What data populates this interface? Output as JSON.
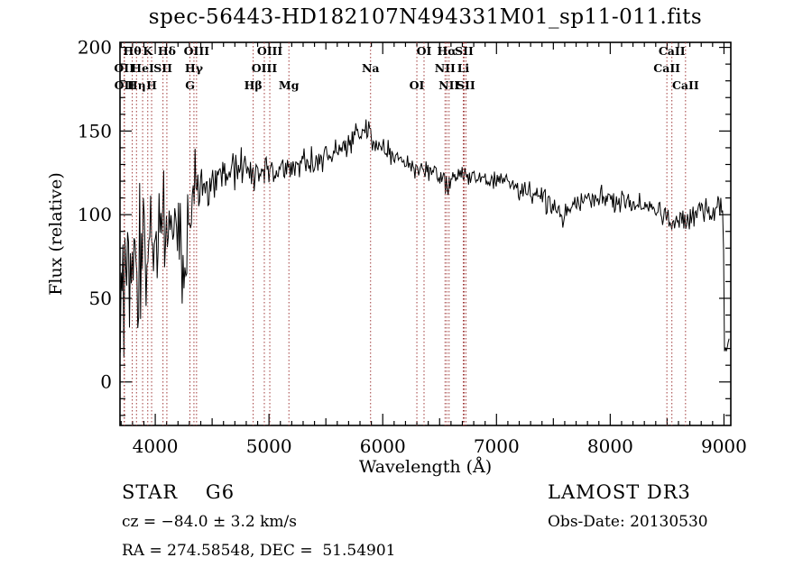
{
  "title": "spec-56443-HD182107N494331M01_sp11-011.fits",
  "annotations": {
    "class_label": "STAR    G6",
    "cz": "cz = −84.0 ± 3.2 km/s",
    "radec": "RA = 274.58548, DEC =  51.54901",
    "survey": "LAMOST DR3",
    "obs_date": "Obs-Date: 20130530"
  },
  "chart_data": {
    "type": "line",
    "title": "spec-56443-HD182107N494331M01_sp11-011.fits",
    "xlabel": "Wavelength (Å)",
    "ylabel": "Flux (relative)",
    "xlim": [
      3690,
      9060
    ],
    "ylim": [
      -26,
      203
    ],
    "x_ticks": [
      4000,
      5000,
      6000,
      7000,
      8000,
      9000
    ],
    "x_minor_step": 100,
    "y_ticks": [
      0,
      50,
      100,
      150,
      200
    ],
    "y_minor_step": 10,
    "grid": false,
    "legend": "none",
    "line_color": "#000000",
    "marker_line_color": "#a03a3a",
    "spectral_lines": [
      {
        "label": "OII",
        "wavelength": 3727,
        "row": 2
      },
      {
        "label": "OII",
        "wavelength": 3729,
        "row": 3
      },
      {
        "label": "Hθ",
        "wavelength": 3798,
        "row": 1
      },
      {
        "label": "Hη",
        "wavelength": 3835,
        "row": 3
      },
      {
        "label": "HeI",
        "wavelength": 3889,
        "row": 2
      },
      {
        "label": "K",
        "wavelength": 3934,
        "row": 1
      },
      {
        "label": "H",
        "wavelength": 3968,
        "row": 3
      },
      {
        "label": "SII",
        "wavelength": 4068,
        "row": 2
      },
      {
        "label": "Hδ",
        "wavelength": 4102,
        "row": 1
      },
      {
        "label": "G",
        "wavelength": 4305,
        "row": 3
      },
      {
        "label": "Hγ",
        "wavelength": 4340,
        "row": 2
      },
      {
        "label": "OIII",
        "wavelength": 4363,
        "row": 1
      },
      {
        "label": "Hβ",
        "wavelength": 4861,
        "row": 3
      },
      {
        "label": "OIII",
        "wavelength": 4959,
        "row": 2
      },
      {
        "label": "OIII",
        "wavelength": 5007,
        "row": 1
      },
      {
        "label": "Mg",
        "wavelength": 5175,
        "row": 3
      },
      {
        "label": "Na",
        "wavelength": 5893,
        "row": 2
      },
      {
        "label": "OI",
        "wavelength": 6300,
        "row": 3
      },
      {
        "label": "OI",
        "wavelength": 6363,
        "row": 1
      },
      {
        "label": "NII",
        "wavelength": 6548,
        "row": 2
      },
      {
        "label": "Hα",
        "wavelength": 6563,
        "row": 1
      },
      {
        "label": "NII",
        "wavelength": 6583,
        "row": 3
      },
      {
        "label": "Li",
        "wavelength": 6708,
        "row": 2
      },
      {
        "label": "SII",
        "wavelength": 6716,
        "row": 1
      },
      {
        "label": "SII",
        "wavelength": 6731,
        "row": 3
      },
      {
        "label": "CaII",
        "wavelength": 8498,
        "row": 2
      },
      {
        "label": "CaII",
        "wavelength": 8542,
        "row": 1
      },
      {
        "label": "CaII",
        "wavelength": 8662,
        "row": 3
      }
    ],
    "spectrum": {
      "seed": 20130530,
      "samples": 660,
      "wl_start": 3692,
      "wl_end": 9045,
      "envelope": [
        [
          3692,
          55,
          55
        ],
        [
          3715,
          70,
          60
        ],
        [
          3745,
          65,
          58
        ],
        [
          3775,
          70,
          55
        ],
        [
          3805,
          72,
          52
        ],
        [
          3835,
          74,
          50
        ],
        [
          3865,
          78,
          48
        ],
        [
          3900,
          82,
          46
        ],
        [
          3935,
          83,
          45
        ],
        [
          3970,
          86,
          44
        ],
        [
          4005,
          90,
          44
        ],
        [
          4040,
          96,
          42
        ],
        [
          4075,
          97,
          38
        ],
        [
          4110,
          95,
          34
        ],
        [
          4150,
          94,
          33
        ],
        [
          4190,
          90,
          34
        ],
        [
          4230,
          82,
          38
        ],
        [
          4270,
          83,
          36
        ],
        [
          4310,
          92,
          30
        ],
        [
          4350,
          105,
          26
        ],
        [
          4400,
          113,
          22
        ],
        [
          4460,
          118,
          19
        ],
        [
          4520,
          121,
          17
        ],
        [
          4590,
          124,
          16
        ],
        [
          4660,
          126,
          15
        ],
        [
          4730,
          127,
          14
        ],
        [
          4800,
          128,
          14
        ],
        [
          4861,
          123,
          12
        ],
        [
          4920,
          127,
          12
        ],
        [
          5000,
          128,
          12
        ],
        [
          5080,
          130,
          11
        ],
        [
          5175,
          126,
          10
        ],
        [
          5250,
          131,
          10
        ],
        [
          5350,
          132,
          10
        ],
        [
          5450,
          134,
          9
        ],
        [
          5550,
          136,
          9
        ],
        [
          5650,
          140,
          9
        ],
        [
          5750,
          145,
          9
        ],
        [
          5840,
          150,
          10
        ],
        [
          5880,
          149,
          12
        ],
        [
          5910,
          139,
          8
        ],
        [
          5960,
          142,
          8
        ],
        [
          6050,
          138,
          8
        ],
        [
          6150,
          133,
          8
        ],
        [
          6250,
          130,
          8
        ],
        [
          6350,
          127,
          8
        ],
        [
          6450,
          125,
          8
        ],
        [
          6540,
          122,
          7
        ],
        [
          6565,
          114,
          6
        ],
        [
          6600,
          122,
          7
        ],
        [
          6700,
          123,
          7
        ],
        [
          6800,
          122,
          7
        ],
        [
          6900,
          121,
          7
        ],
        [
          7000,
          120,
          7
        ],
        [
          7100,
          118,
          7
        ],
        [
          7200,
          116,
          8
        ],
        [
          7300,
          113,
          8
        ],
        [
          7400,
          109,
          9
        ],
        [
          7500,
          104,
          9
        ],
        [
          7600,
          101,
          10
        ],
        [
          7700,
          107,
          9
        ],
        [
          7800,
          110,
          8
        ],
        [
          7900,
          110,
          8
        ],
        [
          8000,
          109,
          8
        ],
        [
          8100,
          108,
          8
        ],
        [
          8200,
          106,
          8
        ],
        [
          8300,
          104,
          8
        ],
        [
          8400,
          102,
          8
        ],
        [
          8470,
          99,
          9
        ],
        [
          8520,
          96,
          9
        ],
        [
          8570,
          97,
          9
        ],
        [
          8620,
          97,
          9
        ],
        [
          8670,
          98,
          9
        ],
        [
          8750,
          102,
          9
        ],
        [
          8850,
          103,
          9
        ],
        [
          8930,
          106,
          10
        ],
        [
          8975,
          108,
          9
        ],
        [
          8993,
          102,
          8
        ],
        [
          9000,
          55,
          5
        ],
        [
          9004,
          20,
          3
        ],
        [
          9030,
          19,
          4
        ],
        [
          9045,
          28,
          3
        ]
      ]
    }
  }
}
